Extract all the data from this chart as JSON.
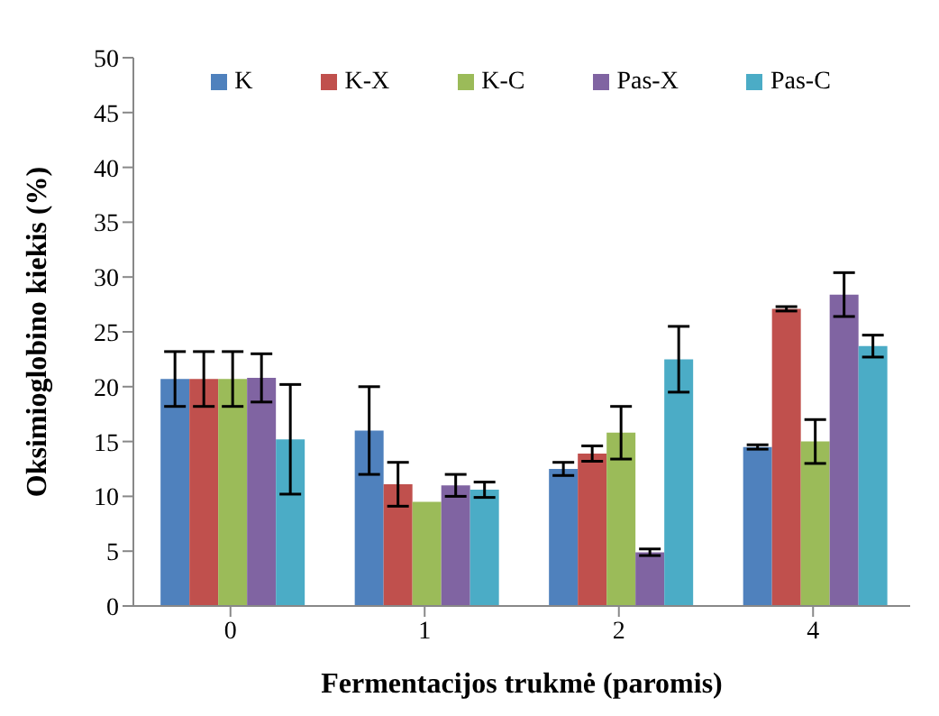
{
  "chart_data": {
    "type": "bar",
    "xlabel": "Fermentacijos trukmė (paromis)",
    "ylabel": "Oksimioglobino kiekis (%)",
    "categories": [
      "0",
      "1",
      "2",
      "4"
    ],
    "series": [
      {
        "name": "K",
        "color": "#4f81bd",
        "values": [
          20.7,
          16,
          12.5,
          14.5
        ],
        "errors": [
          2.5,
          4,
          0.6,
          0.2
        ]
      },
      {
        "name": "K-X",
        "color": "#c0504d",
        "values": [
          20.7,
          11.1,
          13.9,
          27.1
        ],
        "errors": [
          2.5,
          2,
          0.7,
          0.2
        ]
      },
      {
        "name": "K-C",
        "color": "#9bbb59",
        "values": [
          20.7,
          9.5,
          15.8,
          15
        ],
        "errors": [
          2.5,
          null,
          2.4,
          2
        ]
      },
      {
        "name": "Pas-X",
        "color": "#8064a2",
        "values": [
          20.8,
          11,
          4.9,
          28.4
        ],
        "errors": [
          2.2,
          1,
          0.3,
          2
        ]
      },
      {
        "name": "Pas-C",
        "color": "#4bacc6",
        "values": [
          15.2,
          10.6,
          22.5,
          23.7
        ],
        "errors": [
          5,
          0.7,
          3,
          1
        ]
      }
    ],
    "ylim": [
      0,
      50
    ],
    "yticks": [
      0,
      5,
      10,
      15,
      20,
      25,
      30,
      35,
      40,
      45,
      50
    ],
    "grid": false,
    "legend": "top"
  }
}
